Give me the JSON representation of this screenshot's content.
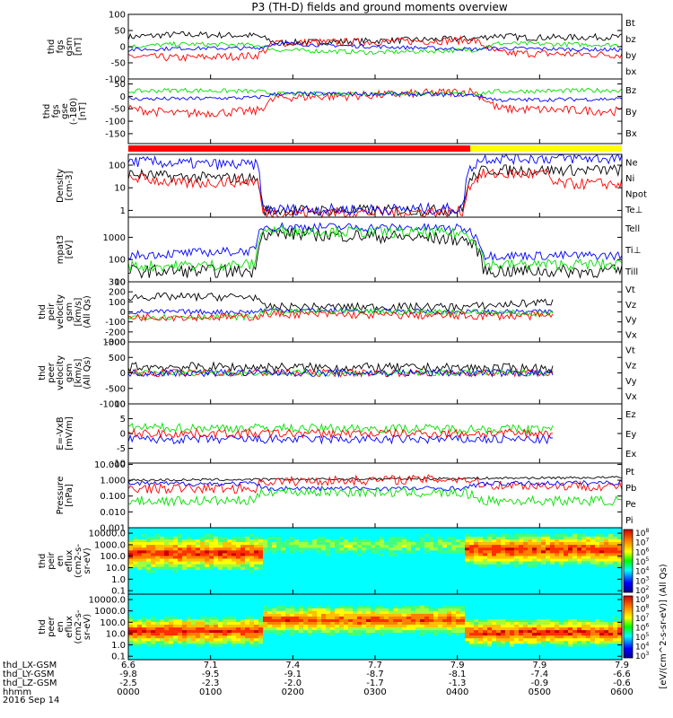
{
  "title": "P3 (TH-D) fields and ground moments overview",
  "date": "2016 Sep 14",
  "colors": {
    "black": "#000000",
    "red": "#ff0000",
    "green": "#00e000",
    "blue": "#0000ff",
    "yellow": "#ffff00"
  },
  "status_bar": [
    {
      "from": 0,
      "to": 0.693,
      "color": "red"
    },
    {
      "from": 0.693,
      "to": 1,
      "color": "yellow"
    }
  ],
  "chart_data": [
    {
      "type": "line",
      "id": "fgs_gsm",
      "ylabel": [
        "thd",
        "fgs",
        "gsm",
        "[nT]"
      ],
      "ylim": [
        -100,
        100
      ],
      "ticks": [
        100,
        50,
        0,
        -50,
        -100
      ],
      "legend": [
        {
          "label": "Bt",
          "color": "black"
        },
        {
          "label": "bz",
          "color": "red"
        },
        {
          "label": "by",
          "color": "green"
        },
        {
          "label": "bx",
          "color": "blue"
        }
      ],
      "series": [
        {
          "name": "Bt",
          "color": "black",
          "t": [
            0,
            0.1,
            0.26,
            0.3,
            0.5,
            0.7,
            0.75,
            0.8,
            1
          ],
          "v": [
            30,
            38,
            34,
            12,
            18,
            25,
            35,
            28,
            30
          ],
          "noise": 10
        },
        {
          "name": "bz",
          "color": "red",
          "t": [
            0,
            0.1,
            0.26,
            0.3,
            0.5,
            0.7,
            0.75,
            1
          ],
          "v": [
            -30,
            -35,
            -28,
            12,
            15,
            20,
            -20,
            -25
          ],
          "noise": 12
        },
        {
          "name": "by",
          "color": "green",
          "t": [
            0,
            0.1,
            0.26,
            0.3,
            0.5,
            0.7,
            0.75,
            1
          ],
          "v": [
            0,
            8,
            5,
            -10,
            -18,
            -10,
            10,
            5
          ],
          "noise": 7
        },
        {
          "name": "bx",
          "color": "blue",
          "t": [
            0,
            0.1,
            0.26,
            0.3,
            0.5,
            0.7,
            0.75,
            1
          ],
          "v": [
            -10,
            -5,
            -5,
            10,
            0,
            -8,
            -5,
            -10
          ],
          "noise": 6
        }
      ]
    },
    {
      "type": "line",
      "id": "fgs_gse",
      "ylabel": [
        "thd",
        "fgs",
        "gse",
        "(-180)",
        "[nT]"
      ],
      "ylim": [
        -190,
        70
      ],
      "ticks": [
        50,
        0,
        -50,
        -100,
        -150
      ],
      "legend": [
        {
          "label": "Bz",
          "color": "red"
        },
        {
          "label": "By",
          "color": "green"
        },
        {
          "label": "Bx",
          "color": "blue"
        }
      ],
      "series": [
        {
          "name": "Bz",
          "color": "red",
          "t": [
            0,
            0.1,
            0.26,
            0.3,
            0.5,
            0.7,
            0.75,
            1
          ],
          "v": [
            -50,
            -70,
            -60,
            -5,
            5,
            20,
            -50,
            -60
          ],
          "noise": 18
        },
        {
          "name": "By",
          "color": "green",
          "t": [
            0,
            0.1,
            0.26,
            0.3,
            0.5,
            0.7,
            0.75,
            1
          ],
          "v": [
            20,
            25,
            20,
            10,
            12,
            10,
            20,
            25
          ],
          "noise": 9
        },
        {
          "name": "Bx",
          "color": "blue",
          "t": [
            0,
            0.1,
            0.26,
            0.3,
            0.5,
            0.7,
            0.75,
            1
          ],
          "v": [
            -10,
            -10,
            -5,
            10,
            10,
            5,
            -15,
            -10
          ],
          "noise": 8
        }
      ]
    },
    {
      "type": "line",
      "id": "density",
      "ylabel": [
        "Density",
        "[cm-3]"
      ],
      "ylim": [
        0.5,
        300
      ],
      "log": true,
      "ticks": [
        100,
        10,
        1
      ],
      "legend": [
        {
          "label": "Ne",
          "color": "red"
        },
        {
          "label": "Ni",
          "color": "black"
        },
        {
          "label": "Npot",
          "color": "blue"
        },
        {
          "label": "Te⊥",
          "color": "red"
        }
      ],
      "series": [
        {
          "name": "Ni",
          "color": "black",
          "t": [
            0,
            0.1,
            0.26,
            0.27,
            0.5,
            0.68,
            0.72,
            1
          ],
          "v": [
            40,
            30,
            25,
            1,
            1,
            1,
            60,
            60
          ],
          "noise": 0.25
        },
        {
          "name": "Ne",
          "color": "red",
          "t": [
            0,
            0.1,
            0.26,
            0.27,
            0.5,
            0.68,
            0.72,
            0.85,
            0.86,
            1
          ],
          "v": [
            30,
            15,
            20,
            0.8,
            0.8,
            0.9,
            40,
            40,
            15,
            15
          ],
          "noise": 0.25
        },
        {
          "name": "Npot",
          "color": "blue",
          "t": [
            0,
            0.1,
            0.26,
            0.27,
            0.5,
            0.68,
            0.72,
            1
          ],
          "v": [
            150,
            120,
            100,
            1.1,
            1.1,
            1.2,
            200,
            200
          ],
          "noise": 0.25
        }
      ]
    },
    {
      "type": "line",
      "id": "temperature",
      "ylabel": [
        "mpat3",
        "[eV]"
      ],
      "ylim": [
        10,
        8000
      ],
      "log": true,
      "ticks": [
        1000,
        100,
        10
      ],
      "legend": [
        {
          "label": "Tell",
          "color": "black"
        },
        {
          "label": "Ti⊥",
          "color": "blue"
        },
        {
          "label": "Till",
          "color": "green"
        }
      ],
      "series": [
        {
          "name": "Tell",
          "color": "black",
          "t": [
            0,
            0.26,
            0.27,
            0.68,
            0.72,
            1
          ],
          "v": [
            30,
            30,
            1500,
            800,
            30,
            30
          ],
          "noise": 0.3
        },
        {
          "name": "Ti⊥",
          "color": "blue",
          "t": [
            0,
            0.26,
            0.27,
            0.68,
            0.72,
            1
          ],
          "v": [
            150,
            250,
            3000,
            2500,
            150,
            150
          ],
          "noise": 0.2
        },
        {
          "name": "Till",
          "color": "green",
          "t": [
            0,
            0.26,
            0.27,
            0.68,
            0.72,
            1
          ],
          "v": [
            50,
            60,
            2000,
            1500,
            60,
            60
          ],
          "noise": 0.25
        }
      ]
    },
    {
      "type": "line",
      "id": "peir_velocity",
      "ylabel": [
        "thd",
        "peir",
        "velocity",
        "gsm",
        "[km/s]",
        "(All Qs)"
      ],
      "ylim": [
        -300,
        300
      ],
      "tmax": 0.86,
      "ticks": [
        300,
        200,
        100,
        0,
        -100,
        -200,
        -300
      ],
      "legend": [
        {
          "label": "Vt",
          "color": "black"
        },
        {
          "label": "Vz",
          "color": "red"
        },
        {
          "label": "Vy",
          "color": "green"
        },
        {
          "label": "Vx",
          "color": "blue"
        }
      ],
      "series": [
        {
          "name": "Vt",
          "color": "black",
          "t": [
            0,
            0.26,
            0.27,
            0.68,
            0.86
          ],
          "v": [
            150,
            150,
            50,
            50,
            100
          ],
          "noise": 40
        },
        {
          "name": "Vx",
          "color": "blue",
          "t": [
            0,
            0.26,
            0.27,
            0.68,
            0.86
          ],
          "v": [
            0,
            0,
            20,
            0,
            0
          ],
          "noise": 25
        },
        {
          "name": "Vy",
          "color": "green",
          "t": [
            0,
            0.26,
            0.27,
            0.68,
            0.86
          ],
          "v": [
            -50,
            -50,
            0,
            0,
            -20
          ],
          "noise": 30
        },
        {
          "name": "Vz",
          "color": "red",
          "t": [
            0,
            0.26,
            0.27,
            0.68,
            0.86
          ],
          "v": [
            -50,
            -50,
            -20,
            -40,
            -40
          ],
          "noise": 40
        }
      ]
    },
    {
      "type": "line",
      "id": "peer_velocity",
      "ylabel": [
        "thd",
        "peer",
        "velocity",
        "gsm",
        "[km/s]",
        "(All Qs)"
      ],
      "ylim": [
        -1000,
        1000
      ],
      "tmax": 0.86,
      "ticks": [
        1000,
        500,
        0,
        -500,
        -1000
      ],
      "legend": [
        {
          "label": "Vt",
          "color": "black"
        },
        {
          "label": "Vz",
          "color": "red"
        },
        {
          "label": "Vy",
          "color": "green"
        },
        {
          "label": "Vx",
          "color": "blue"
        }
      ],
      "series": [
        {
          "name": "Vt",
          "color": "black",
          "t": [
            0,
            0.86
          ],
          "v": [
            200,
            150
          ],
          "noise": 150
        },
        {
          "name": "Vz",
          "color": "red",
          "t": [
            0,
            0.86
          ],
          "v": [
            0,
            0
          ],
          "noise": 120
        },
        {
          "name": "Vy",
          "color": "green",
          "t": [
            0,
            0.86
          ],
          "v": [
            0,
            0
          ],
          "noise": 100
        },
        {
          "name": "Vx",
          "color": "blue",
          "t": [
            0,
            0.86
          ],
          "v": [
            0,
            0
          ],
          "noise": 120
        }
      ]
    },
    {
      "type": "line",
      "id": "efield",
      "ylabel": [
        "E=-VxB",
        "[mV/m]"
      ],
      "ylim": [
        -10,
        10
      ],
      "tmax": 0.86,
      "ticks": [
        10,
        5,
        0,
        -5,
        -10
      ],
      "legend": [
        {
          "label": "Ez",
          "color": "red"
        },
        {
          "label": "Ey",
          "color": "green"
        },
        {
          "label": "Ex",
          "color": "blue"
        }
      ],
      "series": [
        {
          "name": "Ex",
          "color": "blue",
          "t": [
            0,
            0.86
          ],
          "v": [
            -2,
            -2
          ],
          "noise": 1.5
        },
        {
          "name": "Ey",
          "color": "green",
          "t": [
            0,
            0.86
          ],
          "v": [
            2,
            1.5
          ],
          "noise": 1.5
        },
        {
          "name": "Ez",
          "color": "red",
          "t": [
            0,
            0.86
          ],
          "v": [
            0,
            0
          ],
          "noise": 1.5
        }
      ]
    },
    {
      "type": "line",
      "id": "pressure",
      "ylabel": [
        "Pressure",
        "[nPa]"
      ],
      "ylim": [
        0.001,
        12
      ],
      "log": true,
      "ticks": [
        10,
        1,
        0.1,
        0.01,
        0.001
      ],
      "tick_labels": [
        "10.000",
        "1.000",
        "0.100",
        "0.010",
        "0.001"
      ],
      "legend": [
        {
          "label": "Pt",
          "color": "black"
        },
        {
          "label": "Pb",
          "color": "red"
        },
        {
          "label": "Pe",
          "color": "green"
        },
        {
          "label": "Pi",
          "color": "blue"
        }
      ],
      "series": [
        {
          "name": "Pt",
          "color": "black",
          "t": [
            0,
            0.5,
            1
          ],
          "v": [
            1,
            1.2,
            1.5
          ],
          "noise": 0.08
        },
        {
          "name": "Pb",
          "color": "red",
          "t": [
            0,
            0.26,
            0.27,
            0.68,
            0.72,
            1
          ],
          "v": [
            0.3,
            0.3,
            0.8,
            1.2,
            0.5,
            0.4
          ],
          "noise": 0.3
        },
        {
          "name": "Pi",
          "color": "blue",
          "t": [
            0,
            0.26,
            0.27,
            0.68,
            0.72,
            1
          ],
          "v": [
            0.6,
            0.6,
            0.3,
            0.3,
            0.6,
            0.7
          ],
          "noise": 0.15
        },
        {
          "name": "Pe",
          "color": "green",
          "t": [
            0,
            0.26,
            0.27,
            0.68,
            0.72,
            1
          ],
          "v": [
            0.05,
            0.05,
            0.2,
            0.15,
            0.05,
            0.05
          ],
          "noise": 0.3
        }
      ]
    },
    {
      "type": "heatmap",
      "id": "peir_spec",
      "ylabel": [
        "thd",
        "peir",
        "en",
        "eflux",
        "(cm2-s-",
        "sr-eV)"
      ],
      "ylim": [
        0.05,
        30000
      ],
      "log": true,
      "ticks": [
        10000,
        1000,
        100,
        10,
        1,
        0.1
      ],
      "tick_labels": [
        "10000.0",
        "1000.0",
        "100.0",
        "10.0",
        "1.0",
        "0.1"
      ],
      "regions": [
        {
          "t": [
            0,
            0.27
          ],
          "band": [
            20,
            2000
          ],
          "level": 0.95
        },
        {
          "t": [
            0.27,
            0.68
          ],
          "band": [
            200,
            5000
          ],
          "level": 0.5
        },
        {
          "t": [
            0.68,
            1
          ],
          "band": [
            50,
            3000
          ],
          "level": 0.95
        }
      ]
    },
    {
      "type": "heatmap",
      "id": "peer_spec",
      "ylabel": [
        "thd",
        "peer",
        "en",
        "eflux",
        "(cm2-s-",
        "sr-eV)"
      ],
      "ylim": [
        0.05,
        30000
      ],
      "log": true,
      "ticks": [
        10000,
        1000,
        100,
        10,
        1,
        0.1
      ],
      "tick_labels": [
        "10000.0",
        "1000.0",
        "100.0",
        "10.0",
        "1.0",
        "0.1"
      ],
      "regions": [
        {
          "t": [
            0,
            0.27
          ],
          "band": [
            3,
            100
          ],
          "level": 0.95
        },
        {
          "t": [
            0.27,
            0.68
          ],
          "band": [
            30,
            1000
          ],
          "level": 0.9
        },
        {
          "t": [
            0.68,
            1
          ],
          "band": [
            3,
            60
          ],
          "level": 0.95
        }
      ]
    }
  ],
  "colorbar": {
    "label": "[eV/(cm^2-s-sr-eV)] (All Qs)",
    "ticks": [
      {
        "base": "10",
        "exp": "8"
      },
      {
        "base": "10",
        "exp": "7"
      },
      {
        "base": "10",
        "exp": "6"
      },
      {
        "base": "10",
        "exp": "5"
      },
      {
        "base": "10",
        "exp": "4"
      },
      {
        "base": "10",
        "exp": "3"
      },
      {
        "base": "10",
        "exp": "2"
      }
    ],
    "ticks2": [
      {
        "base": "10",
        "exp": "9"
      },
      {
        "base": "10",
        "exp": "8"
      },
      {
        "base": "10",
        "exp": "7"
      },
      {
        "base": "10",
        "exp": "6"
      },
      {
        "base": "10",
        "exp": "5"
      },
      {
        "base": "10",
        "exp": "4"
      },
      {
        "base": "10",
        "exp": "3"
      }
    ]
  },
  "xaxis": {
    "row_labels": [
      "thd_LX-GSM",
      "thd_LY-GSM",
      "thd_LZ-GSM",
      "hhmm"
    ],
    "columns": [
      {
        "lx": "6.6",
        "ly": "-9.8",
        "lz": "-2.5",
        "hhmm": "0000"
      },
      {
        "lx": "7.1",
        "ly": "-9.5",
        "lz": "-2.3",
        "hhmm": "0100"
      },
      {
        "lx": "7.4",
        "ly": "-9.1",
        "lz": "-2.0",
        "hhmm": "0200"
      },
      {
        "lx": "7.7",
        "ly": "-8.7",
        "lz": "-1.7",
        "hhmm": "0300"
      },
      {
        "lx": "7.9",
        "ly": "-8.1",
        "lz": "-1.3",
        "hhmm": "0400"
      },
      {
        "lx": "7.9",
        "ly": "-7.4",
        "lz": "-0.9",
        "hhmm": "0500"
      },
      {
        "lx": "7.9",
        "ly": "-6.6",
        "lz": "-0.6",
        "hhmm": "0600"
      }
    ]
  }
}
